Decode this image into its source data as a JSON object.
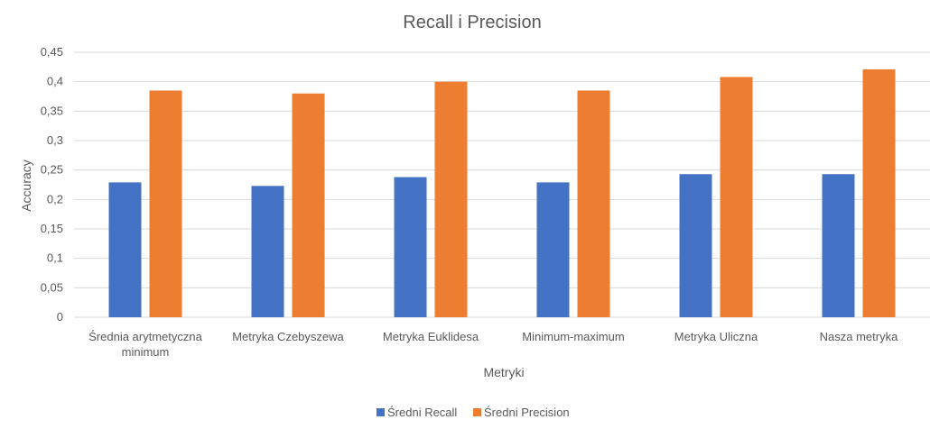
{
  "chart_data": {
    "type": "bar",
    "title": "Recall i Precision",
    "xlabel": "Metryki",
    "ylabel": "Accuracy",
    "ylim": [
      0,
      0.45
    ],
    "ytick_step": 0.05,
    "yticks": [
      "0",
      "0,05",
      "0,1",
      "0,15",
      "0,2",
      "0,25",
      "0,3",
      "0,35",
      "0,4",
      "0,45"
    ],
    "grid": true,
    "legend_position": "bottom",
    "categories": [
      [
        "Średnia arytmetyczna",
        "minimum"
      ],
      [
        "Metryka Czebyszewa"
      ],
      [
        "Metryka Euklidesa"
      ],
      [
        "Minimum-maximum"
      ],
      [
        "Metryka Uliczna"
      ],
      [
        "Nasza metryka"
      ]
    ],
    "series": [
      {
        "name": "Średni Recall",
        "color": "#4472c4",
        "values": [
          0.229,
          0.223,
          0.238,
          0.229,
          0.243,
          0.243
        ]
      },
      {
        "name": "Średni Precision",
        "color": "#ed7d31",
        "values": [
          0.385,
          0.38,
          0.4,
          0.385,
          0.408,
          0.421
        ]
      }
    ]
  }
}
